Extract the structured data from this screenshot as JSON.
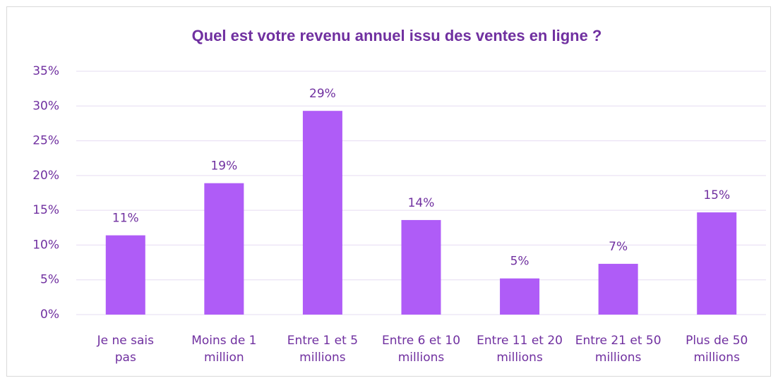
{
  "chart_data": {
    "type": "bar",
    "title": "Quel est votre revenu annuel issu des ventes en ligne ?",
    "categories": [
      [
        "Je ne sais",
        "pas"
      ],
      [
        "Moins de 1",
        "million"
      ],
      [
        "Entre 1 et 5",
        "millions"
      ],
      [
        "Entre 6 et 10",
        "millions"
      ],
      [
        "Entre 11 et 20",
        "millions"
      ],
      [
        "Entre 21 et 50",
        "millions"
      ],
      [
        "Plus de 50",
        "millions"
      ]
    ],
    "values": [
      11.4,
      18.9,
      29.3,
      13.6,
      5.2,
      7.3,
      14.7
    ],
    "value_labels": [
      "11%",
      "19%",
      "29%",
      "14%",
      "5%",
      "7%",
      "15%"
    ],
    "color": "#af5cf7",
    "ylim": [
      0,
      35
    ],
    "yticks": [
      {
        "value": 0,
        "label": "0%"
      },
      {
        "value": 5,
        "label": "5%"
      },
      {
        "value": 10,
        "label": "10%"
      },
      {
        "value": 15,
        "label": "15%"
      },
      {
        "value": 20,
        "label": "20%"
      },
      {
        "value": 25,
        "label": "25%"
      },
      {
        "value": 30,
        "label": "30%"
      },
      {
        "value": 35,
        "label": "35%"
      }
    ],
    "grid": true
  }
}
